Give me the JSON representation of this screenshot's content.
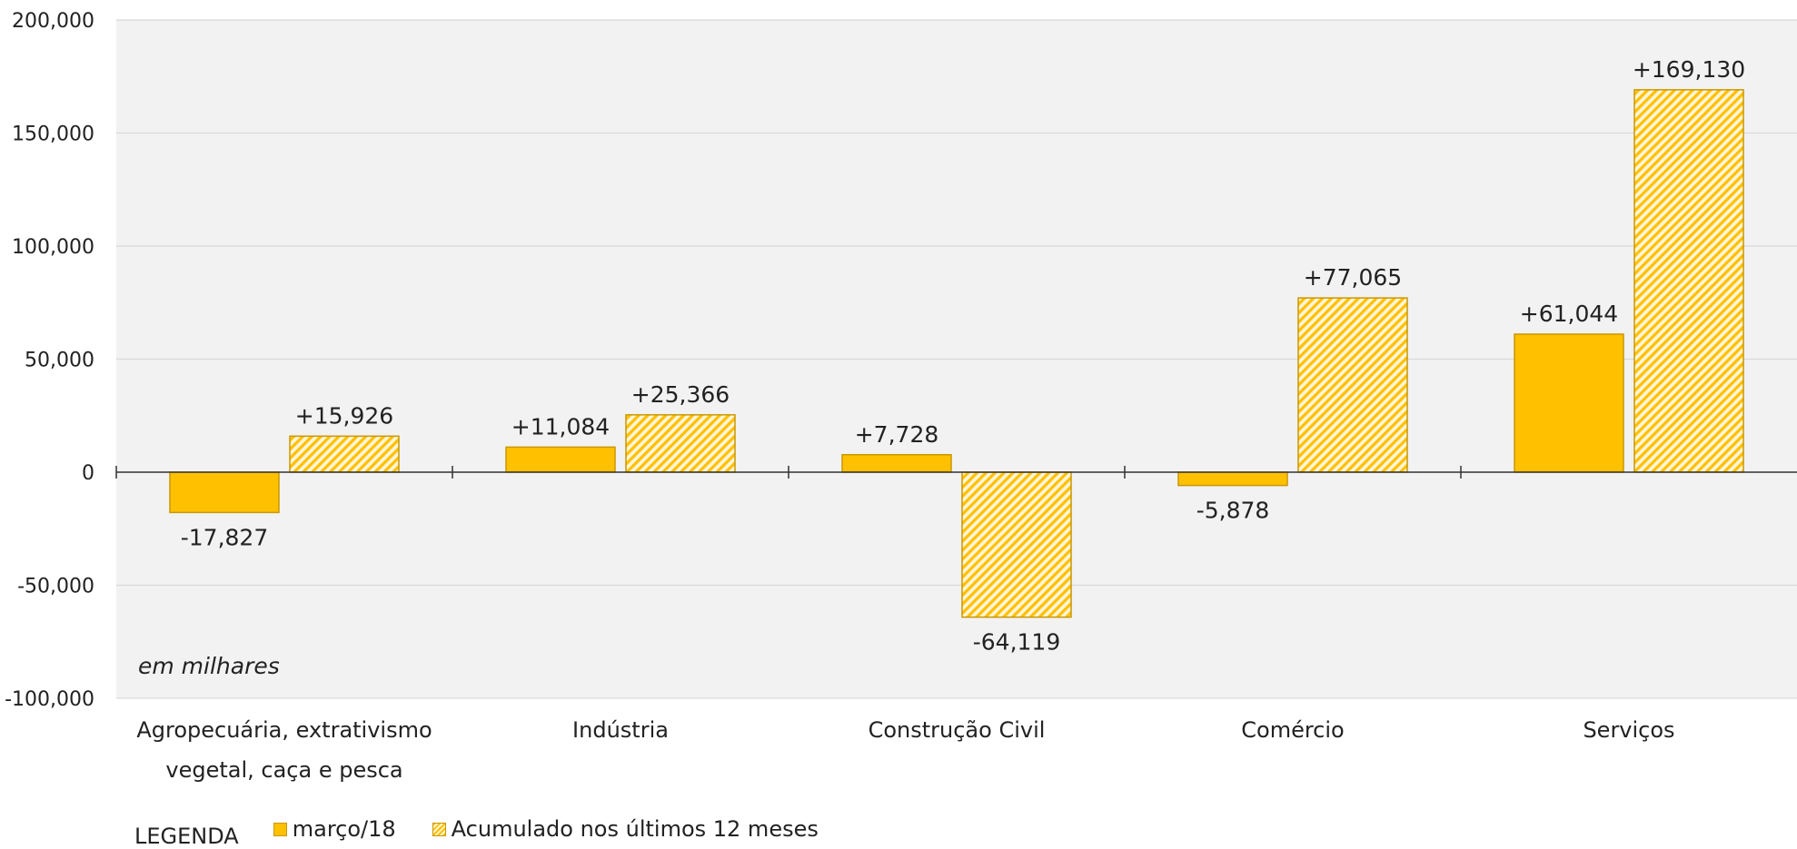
{
  "chart_data": {
    "type": "bar",
    "categories": [
      [
        "Agropecuária, extrativismo",
        "vegetal, caça e pesca"
      ],
      [
        "Indústria"
      ],
      [
        "Construção Civil"
      ],
      [
        "Comércio"
      ],
      [
        "Serviços"
      ]
    ],
    "series": [
      {
        "name": "março/18",
        "style": "solid",
        "values": [
          -17827,
          11084,
          7728,
          -5878,
          61044
        ],
        "labels": [
          "-17,827",
          "+11,084",
          "+7,728",
          "-5,878",
          "+61,044"
        ]
      },
      {
        "name": "Acumulado nos últimos 12 meses",
        "style": "hatched",
        "values": [
          15926,
          25366,
          -64119,
          77065,
          169130
        ],
        "labels": [
          "+15,926",
          "+25,366",
          "-64,119",
          "+77,065",
          "+169,130"
        ]
      }
    ],
    "ylim": [
      -100000,
      200000
    ],
    "yticks": [
      200000,
      150000,
      100000,
      50000,
      0,
      -50000,
      -100000
    ],
    "ytick_labels": [
      "200,000",
      "150,000",
      "100,000",
      "50,000",
      "0",
      "-50,000",
      "-100,000"
    ],
    "grid": true,
    "note": "em milhares",
    "legend_title": "LEGENDA",
    "legend_position": "bottom-left",
    "colors": {
      "bar": "#ffc000",
      "bar_border": "#c99700",
      "hatch_light": "#fff5d6",
      "plot_bg": "#f2f2f2",
      "grid": "#d9d9d9",
      "axis": "#333333"
    }
  }
}
